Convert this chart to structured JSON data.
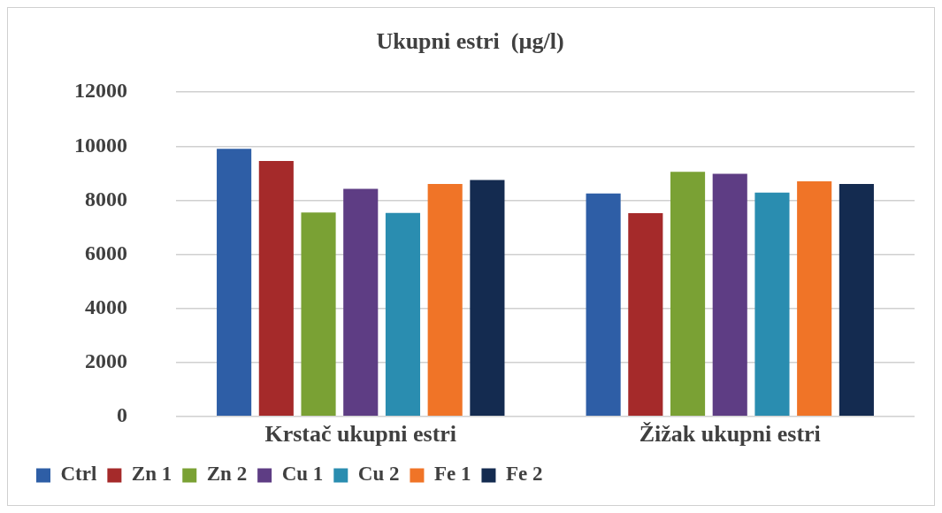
{
  "chart_data": {
    "type": "bar",
    "title": "Ukupni estri  (µg/l)",
    "categories": [
      "Krstač ukupni estri",
      "Žižak ukupni estri"
    ],
    "series": [
      {
        "name": "Ctrl",
        "color": "#2e5ea6",
        "values": [
          9900,
          8250
        ]
      },
      {
        "name": "Zn 1",
        "color": "#a52a2a",
        "values": [
          9450,
          7520
        ]
      },
      {
        "name": "Zn 2",
        "color": "#7aa134",
        "values": [
          7550,
          9050
        ]
      },
      {
        "name": "Cu 1",
        "color": "#5e3d84",
        "values": [
          8420,
          8980
        ]
      },
      {
        "name": "Cu 2",
        "color": "#2a8db0",
        "values": [
          7530,
          8280
        ]
      },
      {
        "name": "Fe 1",
        "color": "#f07427",
        "values": [
          8600,
          8700
        ]
      },
      {
        "name": "Fe 2",
        "color": "#142b50",
        "values": [
          8750,
          8600
        ]
      }
    ],
    "ylim": [
      0,
      12000
    ],
    "yticks": [
      0,
      2000,
      4000,
      6000,
      8000,
      10000,
      12000
    ],
    "grid": "y",
    "legend": "bottom"
  }
}
